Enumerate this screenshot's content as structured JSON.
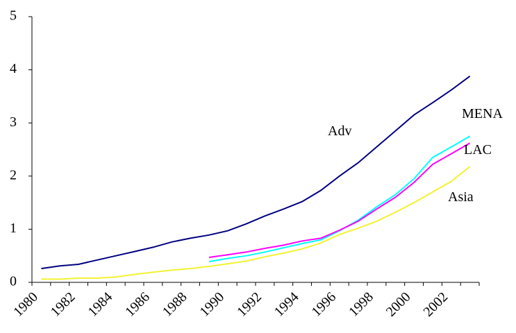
{
  "chart_data": {
    "type": "line",
    "categories": [
      "1980",
      null,
      "1982",
      null,
      "1984",
      null,
      "1986",
      null,
      "1988",
      null,
      "1990",
      null,
      "1992",
      null,
      "1994",
      null,
      "1996",
      null,
      "1998",
      null,
      "2000",
      null,
      "2002",
      null
    ],
    "series": [
      {
        "name": "Adv",
        "color": "#000080",
        "values": [
          0.26,
          0.31,
          0.34,
          0.42,
          0.5,
          0.58,
          0.66,
          0.76,
          0.83,
          0.89,
          0.97,
          1.1,
          1.25,
          1.38,
          1.52,
          1.73,
          2.0,
          2.25,
          2.55,
          2.85,
          3.15,
          3.38,
          3.62,
          3.88
        ]
      },
      {
        "name": "MENA",
        "color": "#00ffff",
        "values": [
          null,
          null,
          null,
          null,
          null,
          null,
          null,
          null,
          null,
          0.39,
          0.45,
          0.5,
          0.57,
          0.65,
          0.73,
          0.8,
          0.97,
          1.17,
          1.42,
          1.65,
          1.95,
          2.35,
          2.55,
          2.75
        ]
      },
      {
        "name": "LAC",
        "color": "#ff00ff",
        "values": [
          null,
          null,
          null,
          null,
          null,
          null,
          null,
          null,
          null,
          0.47,
          0.52,
          0.57,
          0.64,
          0.7,
          0.78,
          0.83,
          0.98,
          1.15,
          1.38,
          1.6,
          1.88,
          2.22,
          2.42,
          2.62
        ]
      },
      {
        "name": "Asia",
        "color": "#f2f230",
        "values": [
          0.06,
          0.06,
          0.08,
          0.08,
          0.1,
          0.15,
          0.19,
          0.23,
          0.26,
          0.3,
          0.35,
          0.4,
          0.48,
          0.55,
          0.63,
          0.74,
          0.9,
          1.02,
          1.15,
          1.32,
          1.5,
          1.7,
          1.9,
          2.18
        ]
      }
    ],
    "ylim": [
      0,
      5
    ],
    "yticks": [
      0,
      1,
      2,
      3,
      4,
      5
    ],
    "grid": false
  }
}
